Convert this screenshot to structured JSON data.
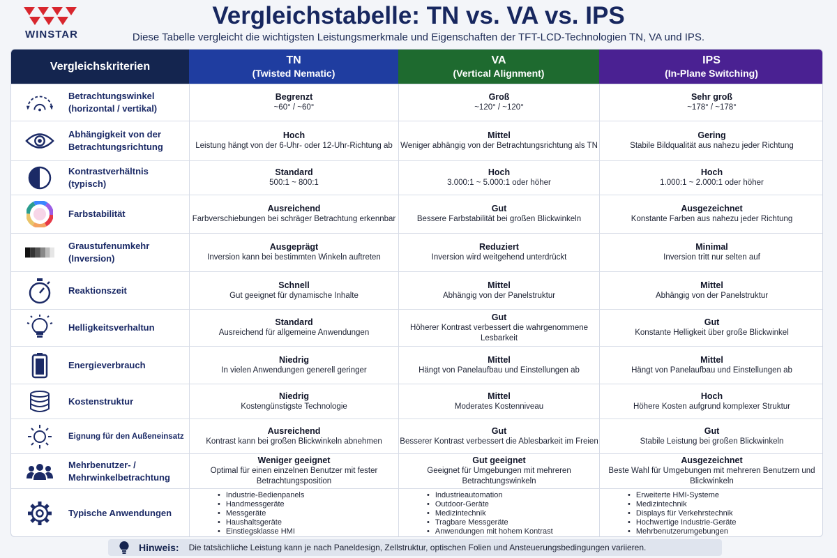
{
  "brand": {
    "name": "WINSTAR"
  },
  "title": "Vergleichstabelle: TN vs. VA vs. IPS",
  "subtitle": "Diese Tabelle vergleicht die wichtigsten Leistungsmerkmale und Eigenschaften der TFT-LCD-Technologien TN, VA und IPS.",
  "headers": {
    "criteria": "Vergleichskriterien",
    "tn": {
      "name": "TN",
      "full": "(Twisted Nematic)"
    },
    "va": {
      "name": "VA",
      "full": "(Vertical Alignment)"
    },
    "ips": {
      "name": "IPS",
      "full": "(In-Plane Switching)"
    }
  },
  "colors": {
    "tn": "#1f3da0",
    "va": "#1e6a2f",
    "ips": "#4a2192",
    "criteria": "#14254f"
  },
  "rows": [
    {
      "icon": "viewing-angle-icon",
      "label": "Betrachtungswinkel (horizontal / vertikal)",
      "tn": {
        "rating": "Begrenzt",
        "desc": "~60° / ~60°"
      },
      "va": {
        "rating": "Groß",
        "desc": "~120° / ~120°"
      },
      "ips": {
        "rating": "Sehr groß",
        "desc": "~178° / ~178°"
      }
    },
    {
      "icon": "eye-icon",
      "label": "Abhängigkeit von der Betrachtungsrichtung",
      "tn": {
        "rating": "Hoch",
        "desc": "Leistung hängt von der 6-Uhr- oder 12-Uhr-Richtung ab"
      },
      "va": {
        "rating": "Mittel",
        "desc": "Weniger abhängig von der Betrachtungsrichtung als TN"
      },
      "ips": {
        "rating": "Gering",
        "desc": "Stabile Bildqualität aus nahezu jeder Richtung"
      }
    },
    {
      "icon": "contrast-icon",
      "label": "Kontrastverhältnis (typisch)",
      "tn": {
        "rating": "Standard",
        "desc": "500:1 ~ 800:1"
      },
      "va": {
        "rating": "Hoch",
        "desc": "3.000:1 ~ 5.000:1 oder höher"
      },
      "ips": {
        "rating": "Hoch",
        "desc": "1.000:1 ~ 2.000:1 oder höher"
      }
    },
    {
      "icon": "color-wheel-icon",
      "label": "Farbstabilität",
      "tn": {
        "rating": "Ausreichend",
        "desc": "Farbverschiebungen bei schräger Betrachtung erkennbar"
      },
      "va": {
        "rating": "Gut",
        "desc": "Bessere Farbstabilität bei großen Blickwinkeln"
      },
      "ips": {
        "rating": "Ausgezeichnet",
        "desc": "Konstante Farben aus nahezu jeder Richtung"
      }
    },
    {
      "icon": "grayscale-icon",
      "label": "Graustufenumkehr (Inversion)",
      "tn": {
        "rating": "Ausgeprägt",
        "desc": "Inversion kann bei bestimmten Winkeln auftreten"
      },
      "va": {
        "rating": "Reduziert",
        "desc": "Inversion wird weitgehend unterdrückt"
      },
      "ips": {
        "rating": "Minimal",
        "desc": "Inversion tritt nur selten auf"
      }
    },
    {
      "icon": "stopwatch-icon",
      "label": "Reaktionszeit",
      "tn": {
        "rating": "Schnell",
        "desc": "Gut geeignet für dynamische Inhalte"
      },
      "va": {
        "rating": "Mittel",
        "desc": "Abhängig von der Panelstruktur"
      },
      "ips": {
        "rating": "Mittel",
        "desc": "Abhängig von der Panelstruktur"
      }
    },
    {
      "icon": "lightbulb-icon",
      "label": "Helligkeitsverhaltun",
      "tn": {
        "rating": "Standard",
        "desc": "Ausreichend für allgemeine Anwendungen"
      },
      "va": {
        "rating": "Gut",
        "desc": "Höherer Kontrast verbessert die wahrgenommene Lesbarkeit"
      },
      "ips": {
        "rating": "Gut",
        "desc": "Konstante Helligkeit über große Blickwinkel"
      }
    },
    {
      "icon": "battery-icon",
      "label": "Energieverbrauch",
      "tn": {
        "rating": "Niedrig",
        "desc": "In vielen Anwendungen generell geringer"
      },
      "va": {
        "rating": "Mittel",
        "desc": "Hängt von Panelaufbau und Einstellungen ab"
      },
      "ips": {
        "rating": "Mittel",
        "desc": "Hängt von Panelaufbau und Einstellungen ab"
      }
    },
    {
      "icon": "coin-stack-icon",
      "label": "Kostenstruktur",
      "tn": {
        "rating": "Niedrig",
        "desc": "Kostengünstigste Technologie"
      },
      "va": {
        "rating": "Mittel",
        "desc": "Moderates Kostenniveau"
      },
      "ips": {
        "rating": "Hoch",
        "desc": "Höhere Kosten aufgrund komplexer Struktur"
      }
    },
    {
      "icon": "sun-icon",
      "label": "Eignung für den Außeneinsatz",
      "tn": {
        "rating": "Ausreichend",
        "desc": "Kontrast kann bei großen Blickwinkeln abnehmen"
      },
      "va": {
        "rating": "Gut",
        "desc": "Besserer Kontrast verbessert die Ablesbarkeit im Freien"
      },
      "ips": {
        "rating": "Gut",
        "desc": "Stabile Leistung bei großen Blickwinkeln"
      }
    },
    {
      "icon": "users-icon",
      "label": "Mehrbenutzer- / Mehrwinkelbetrachtung",
      "tn": {
        "rating": "Weniger geeignet",
        "desc": "Optimal für einen einzelnen Benutzer mit fester Betrachtungsposition"
      },
      "va": {
        "rating": "Gut geeignet",
        "desc": "Geeignet für Umgebungen mit mehreren Betrachtungswinkeln"
      },
      "ips": {
        "rating": "Ausgezeichnet",
        "desc": "Beste Wahl für Umgebungen mit mehreren Benutzern und Blickwinkeln"
      }
    }
  ],
  "applications": {
    "icon": "gear-icon",
    "label": "Typische Anwendungen",
    "tn": [
      "Industrie-Bedienpanels",
      "Handmessgeräte",
      "Messgeräte",
      "Haushaltsgeräte",
      "Einstiegsklasse HMI"
    ],
    "va": [
      "Industrieautomation",
      "Outdoor-Geräte",
      "Medizintechnik",
      "Tragbare Messgeräte",
      "Anwendungen mit hohem Kontrast"
    ],
    "ips": [
      "Erweiterte HMI-Systeme",
      "Medizintechnik",
      "Displays für Verkehrstechnik",
      "Hochwertige Industrie-Geräte",
      "Mehrbenutzerumgebungen"
    ]
  },
  "note": {
    "label": "Hinweis:",
    "text": "Die tatsächliche Leistung kann je nach Paneldesign, Zellstruktur, optischen Folien und Ansteuerungsbedingungen variieren."
  }
}
